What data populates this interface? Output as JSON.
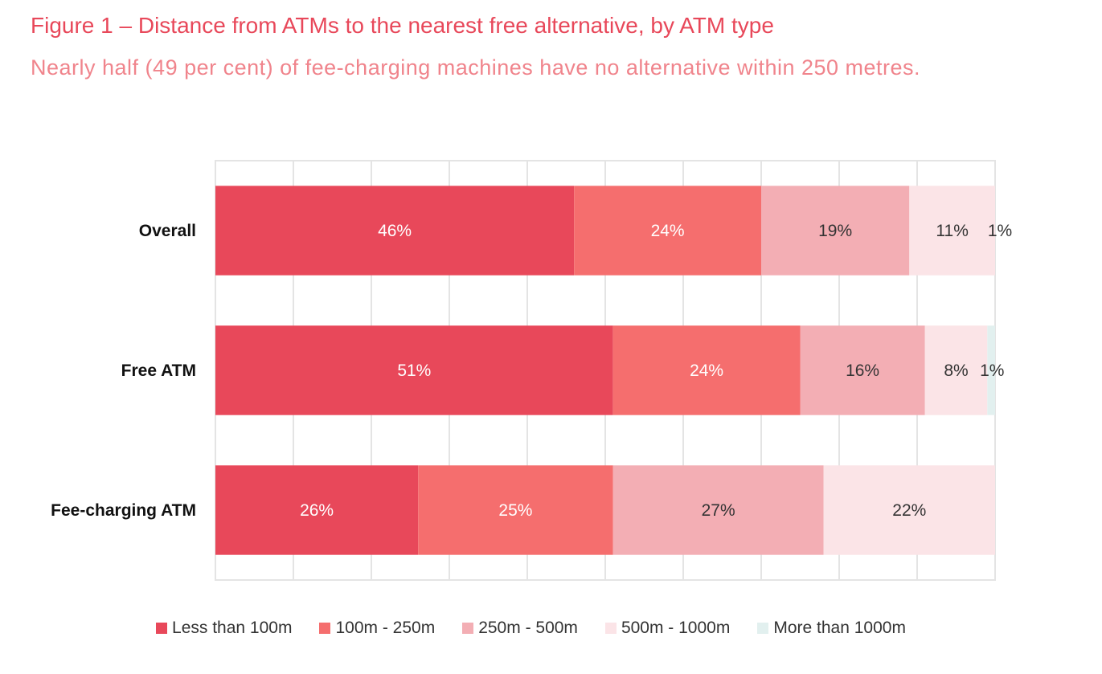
{
  "title": "Figure 1 – Distance from ATMs to the nearest free alternative, by ATM type",
  "subtitle": "Nearly half (49 per cent) of fee-charging machines have no alternative within 250 metres.",
  "chart_data": {
    "type": "bar",
    "orientation": "horizontal",
    "stacked": true,
    "xlim": [
      0,
      100
    ],
    "grid": true,
    "legend_position": "bottom",
    "categories": [
      "Overall",
      "Free ATM",
      "Fee-charging ATM"
    ],
    "series": [
      {
        "name": "Less than 100m",
        "color": "#e8485a",
        "values": [
          46,
          51,
          26
        ],
        "labels": [
          "46%",
          "51%",
          "26%"
        ],
        "label_color": "#ffffff"
      },
      {
        "name": "100m - 250m",
        "color": "#f56e6e",
        "values": [
          24,
          24,
          25
        ],
        "labels": [
          "24%",
          "24%",
          "25%"
        ],
        "label_color": "#ffffff"
      },
      {
        "name": "250m - 500m",
        "color": "#f3aeb4",
        "values": [
          19,
          16,
          27
        ],
        "labels": [
          "19%",
          "16%",
          "27%"
        ],
        "label_color": "#333333"
      },
      {
        "name": "500m - 1000m",
        "color": "#fbe4e7",
        "values": [
          11,
          8,
          22
        ],
        "labels": [
          "11%",
          "8%",
          "22%"
        ],
        "label_color": "#333333"
      },
      {
        "name": "More than 1000m",
        "color": "#e2f0ef",
        "values": [
          1,
          1,
          0
        ],
        "labels": [
          "1%",
          "1%",
          ""
        ],
        "label_color": "#333333"
      }
    ]
  }
}
